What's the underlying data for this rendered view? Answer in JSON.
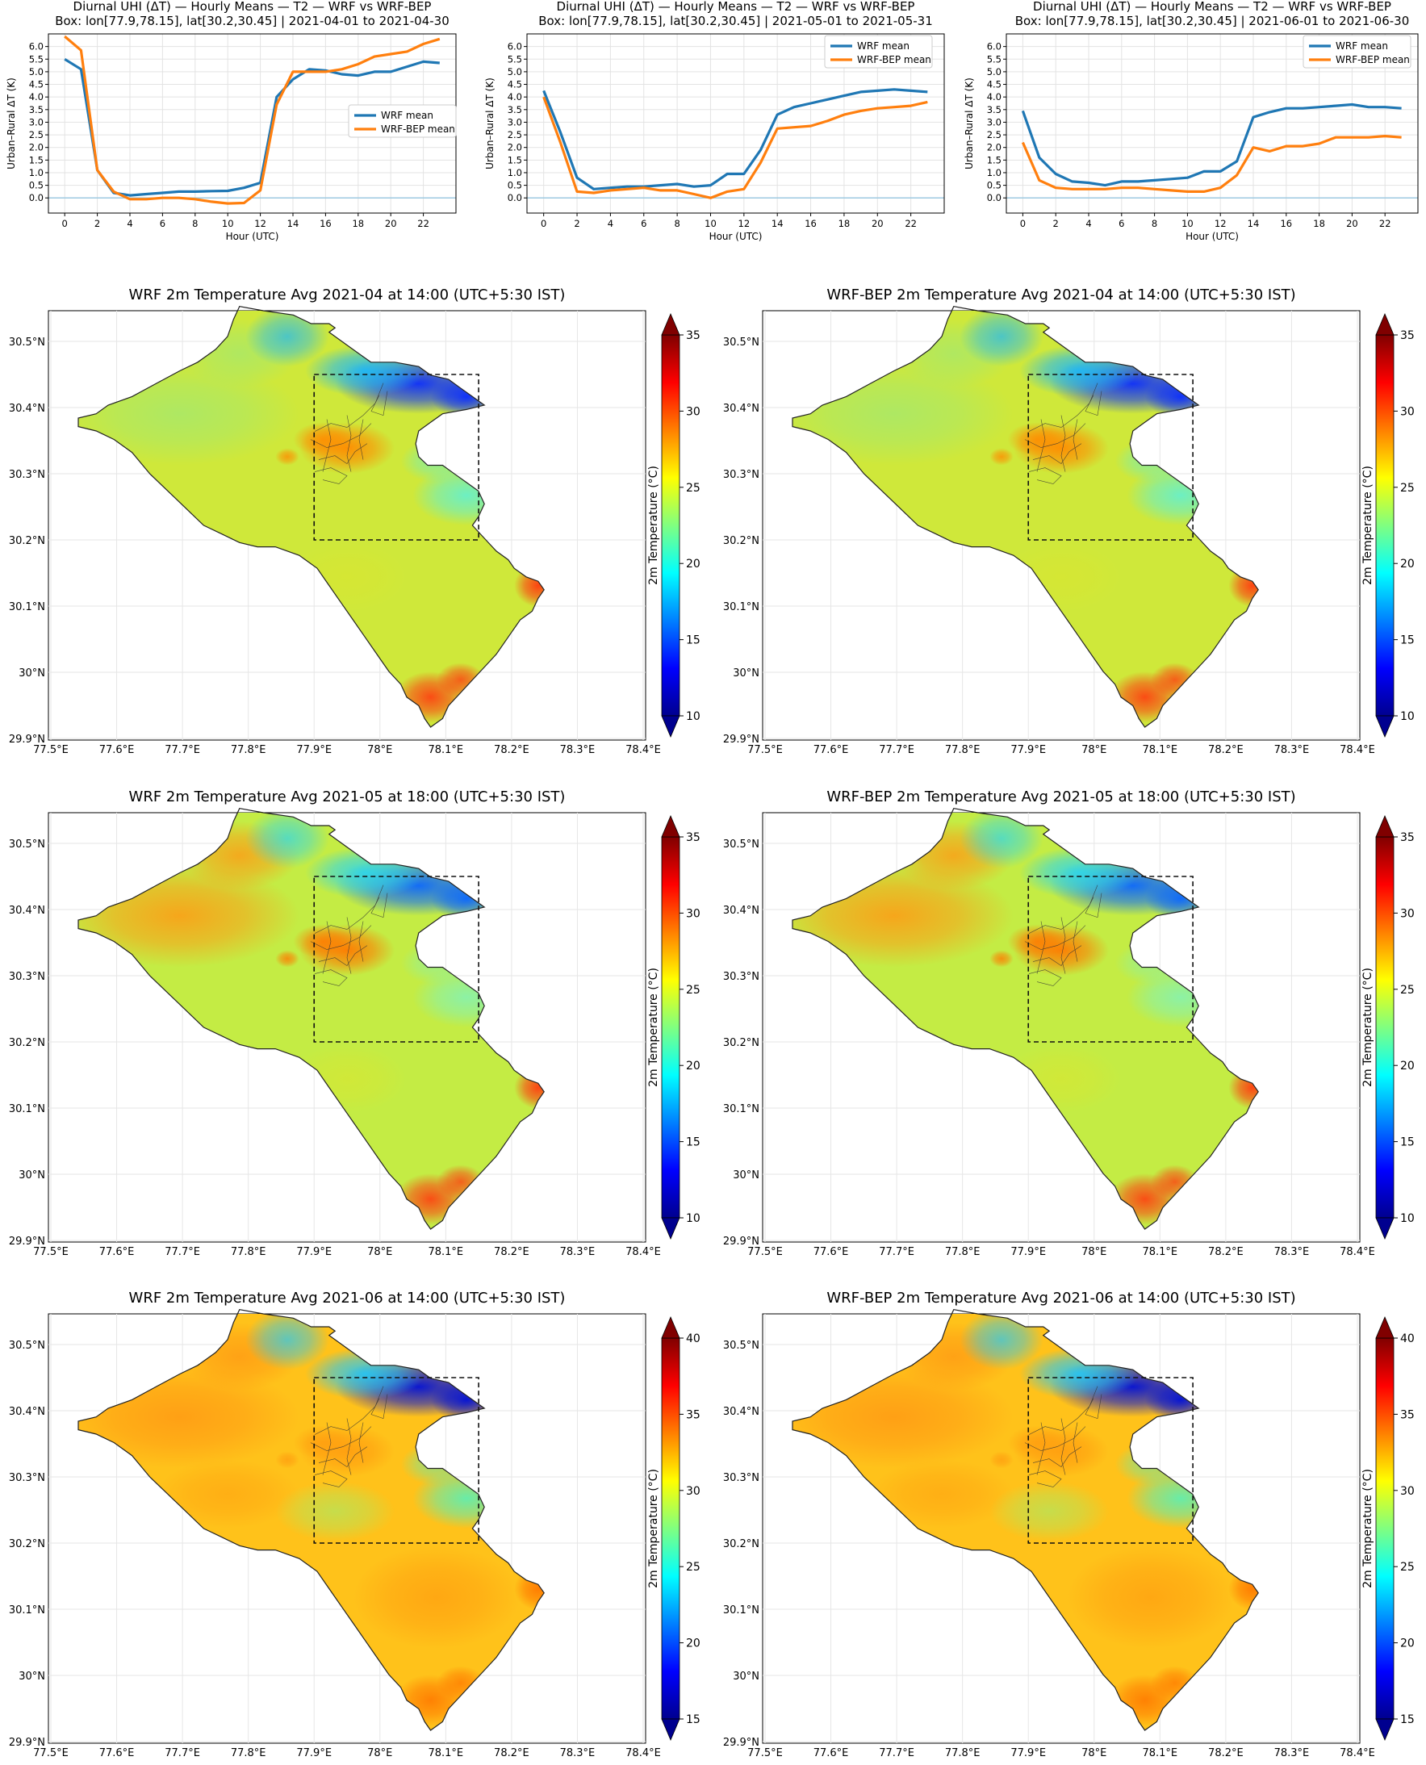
{
  "lines": [
    {
      "type": "line",
      "title_line1": "Diurnal UHI (ΔT) — Hourly Means — T2 — WRF vs WRF-BEP",
      "title_line2": "Box: lon[77.9,78.15], lat[30.2,30.45] | 2021-04-01 to 2021-04-30",
      "xlabel": "Hour (UTC)",
      "ylabel": "Urban–Rural ΔT (K)",
      "xlim": [
        -1,
        24
      ],
      "ylim": [
        -0.6,
        6.5
      ],
      "xticks": [
        "0",
        "2",
        "4",
        "6",
        "8",
        "10",
        "12",
        "14",
        "16",
        "18",
        "20",
        "22"
      ],
      "yticks": [
        "0.0",
        "0.5",
        "1.0",
        "1.5",
        "2.0",
        "2.5",
        "3.0",
        "3.5",
        "4.0",
        "4.5",
        "5.0",
        "5.5",
        "6.0"
      ],
      "legend": "mid-right",
      "grid": true,
      "zero_line_color": "#9ecae1",
      "x": [
        0,
        1,
        2,
        3,
        4,
        5,
        6,
        7,
        8,
        9,
        10,
        11,
        12,
        13,
        14,
        15,
        16,
        17,
        18,
        19,
        20,
        21,
        22,
        23
      ],
      "series": [
        {
          "name": "WRF mean",
          "color": "#1f77b4",
          "values": [
            5.5,
            5.1,
            1.1,
            0.2,
            0.1,
            0.15,
            0.2,
            0.25,
            0.25,
            0.27,
            0.28,
            0.4,
            0.6,
            4.0,
            4.7,
            5.1,
            5.05,
            4.9,
            4.85,
            5.0,
            5.0,
            5.2,
            5.4,
            5.35
          ]
        },
        {
          "name": "WRF-BEP mean",
          "color": "#ff7f0e",
          "values": [
            6.4,
            5.85,
            1.1,
            0.25,
            -0.05,
            -0.05,
            0.0,
            0.0,
            -0.05,
            -0.15,
            -0.22,
            -0.2,
            0.3,
            3.7,
            5.0,
            5.0,
            5.0,
            5.1,
            5.3,
            5.6,
            5.7,
            5.8,
            6.1,
            6.3
          ]
        }
      ]
    },
    {
      "type": "line",
      "title_line1": "Diurnal UHI (ΔT) — Hourly Means — T2 — WRF vs WRF-BEP",
      "title_line2": "Box: lon[77.9,78.15], lat[30.2,30.45] | 2021-05-01 to 2021-05-31",
      "xlabel": "Hour (UTC)",
      "ylabel": "Urban–Rural ΔT (K)",
      "xlim": [
        -1,
        24
      ],
      "ylim": [
        -0.6,
        6.5
      ],
      "xticks": [
        "0",
        "2",
        "4",
        "6",
        "8",
        "10",
        "12",
        "14",
        "16",
        "18",
        "20",
        "22"
      ],
      "yticks": [
        "0.0",
        "0.5",
        "1.0",
        "1.5",
        "2.0",
        "2.5",
        "3.0",
        "3.5",
        "4.0",
        "4.5",
        "5.0",
        "5.5",
        "6.0"
      ],
      "legend": "top-right",
      "grid": true,
      "zero_line_color": "#9ecae1",
      "x": [
        0,
        1,
        2,
        3,
        4,
        5,
        6,
        7,
        8,
        9,
        10,
        11,
        12,
        13,
        14,
        15,
        16,
        17,
        18,
        19,
        20,
        21,
        22,
        23
      ],
      "series": [
        {
          "name": "WRF mean",
          "color": "#1f77b4",
          "values": [
            4.25,
            2.6,
            0.8,
            0.35,
            0.4,
            0.45,
            0.45,
            0.5,
            0.55,
            0.45,
            0.5,
            0.95,
            0.95,
            1.9,
            3.3,
            3.6,
            3.75,
            3.9,
            4.05,
            4.2,
            4.25,
            4.3,
            4.25,
            4.2
          ]
        },
        {
          "name": "WRF-BEP mean",
          "color": "#ff7f0e",
          "values": [
            4.0,
            2.2,
            0.25,
            0.2,
            0.3,
            0.35,
            0.4,
            0.3,
            0.3,
            0.15,
            0.0,
            0.25,
            0.35,
            1.4,
            2.75,
            2.8,
            2.85,
            3.05,
            3.3,
            3.45,
            3.55,
            3.6,
            3.65,
            3.8
          ]
        }
      ]
    },
    {
      "type": "line",
      "title_line1": "Diurnal UHI (ΔT) — Hourly Means — T2 — WRF vs WRF-BEP",
      "title_line2": "Box: lon[77.9,78.15], lat[30.2,30.45] | 2021-06-01 to 2021-06-30",
      "xlabel": "Hour (UTC)",
      "ylabel": "Urban–Rural ΔT (K)",
      "xlim": [
        -1,
        24
      ],
      "ylim": [
        -0.6,
        6.5
      ],
      "xticks": [
        "0",
        "2",
        "4",
        "6",
        "8",
        "10",
        "12",
        "14",
        "16",
        "18",
        "20",
        "22"
      ],
      "yticks": [
        "0.0",
        "0.5",
        "1.0",
        "1.5",
        "2.0",
        "2.5",
        "3.0",
        "3.5",
        "4.0",
        "4.5",
        "5.0",
        "5.5",
        "6.0"
      ],
      "legend": "top-right",
      "grid": true,
      "zero_line_color": "#9ecae1",
      "x": [
        0,
        1,
        2,
        3,
        4,
        5,
        6,
        7,
        8,
        9,
        10,
        11,
        12,
        13,
        14,
        15,
        16,
        17,
        18,
        19,
        20,
        21,
        22,
        23
      ],
      "series": [
        {
          "name": "WRF mean",
          "color": "#1f77b4",
          "values": [
            3.45,
            1.6,
            0.95,
            0.65,
            0.6,
            0.5,
            0.65,
            0.65,
            0.7,
            0.75,
            0.8,
            1.05,
            1.05,
            1.45,
            3.2,
            3.4,
            3.55,
            3.55,
            3.6,
            3.65,
            3.7,
            3.6,
            3.6,
            3.55
          ]
        },
        {
          "name": "WRF-BEP mean",
          "color": "#ff7f0e",
          "values": [
            2.2,
            0.7,
            0.4,
            0.35,
            0.35,
            0.35,
            0.4,
            0.4,
            0.35,
            0.3,
            0.25,
            0.25,
            0.4,
            0.9,
            2.0,
            1.85,
            2.05,
            2.05,
            2.15,
            2.4,
            2.4,
            2.4,
            2.45,
            2.4
          ]
        }
      ]
    }
  ],
  "maps": [
    {
      "type": "heatmap",
      "title": "WRF 2m Temperature Avg 2021-04 at 14:00 (UTC+5:30 IST)",
      "cbar_label": "2m Temperature (°C)",
      "cbar_ticks": [
        "10",
        "15",
        "20",
        "25",
        "30",
        "35"
      ],
      "scheme": "apr"
    },
    {
      "type": "heatmap",
      "title": "WRF-BEP 2m Temperature Avg 2021-04 at 14:00 (UTC+5:30 IST)",
      "cbar_label": "2m Temperature (°C)",
      "cbar_ticks": [
        "10",
        "15",
        "20",
        "25",
        "30",
        "35"
      ],
      "scheme": "apr"
    },
    {
      "type": "heatmap",
      "title": "WRF 2m Temperature Avg 2021-05 at 18:00 (UTC+5:30 IST)",
      "cbar_label": "2m Temperature (°C)",
      "cbar_ticks": [
        "10",
        "15",
        "20",
        "25",
        "30",
        "35"
      ],
      "scheme": "may"
    },
    {
      "type": "heatmap",
      "title": "WRF-BEP 2m Temperature Avg 2021-05 at 18:00 (UTC+5:30 IST)",
      "cbar_label": "2m Temperature (°C)",
      "cbar_ticks": [
        "10",
        "15",
        "20",
        "25",
        "30",
        "35"
      ],
      "scheme": "may"
    },
    {
      "type": "heatmap",
      "title": "WRF 2m Temperature Avg 2021-06 at 14:00 (UTC+5:30 IST)",
      "cbar_label": "2m Temperature (°C)",
      "cbar_ticks": [
        "15",
        "20",
        "25",
        "30",
        "35",
        "40"
      ],
      "scheme": "jun"
    },
    {
      "type": "heatmap",
      "title": "WRF-BEP 2m Temperature Avg 2021-06 at 14:00 (UTC+5:30 IST)",
      "cbar_label": "2m Temperature (°C)",
      "cbar_ticks": [
        "15",
        "20",
        "25",
        "30",
        "35",
        "40"
      ],
      "scheme": "jun"
    }
  ],
  "map_axes": {
    "lon_ticks": [
      "77.5°E",
      "77.6°E",
      "77.7°E",
      "77.8°E",
      "77.9°E",
      "78°E",
      "78.1°E",
      "78.2°E",
      "78.3°E",
      "78.4°E"
    ],
    "lat_ticks": [
      "29.9°N",
      "30°N",
      "30.1°N",
      "30.2°N",
      "30.3°N",
      "30.4°N",
      "30.5°N"
    ],
    "box_lon": [
      77.9,
      78.15
    ],
    "box_lat": [
      30.2,
      30.45
    ]
  },
  "colormap": [
    "#00008f",
    "#0000ff",
    "#0080ff",
    "#00ffff",
    "#80ff80",
    "#ffff00",
    "#ff8000",
    "#ff0000",
    "#800000"
  ]
}
